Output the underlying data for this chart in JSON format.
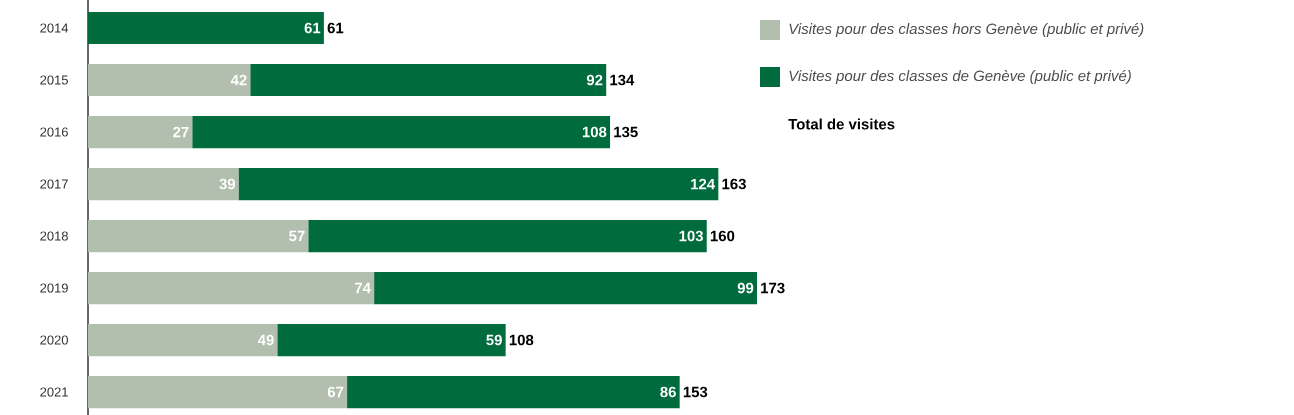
{
  "chart_data": {
    "type": "bar",
    "orientation": "horizontal",
    "stacked": true,
    "data_labels": true,
    "legend": "top right",
    "categories": [
      "2014",
      "2015",
      "2016",
      "2017",
      "2018",
      "2019",
      "2020",
      "2021"
    ],
    "series": [
      {
        "name": "Visites pour des classes hors Genève (public et privé)",
        "color": "#b3bfae",
        "values": [
          null,
          42,
          27,
          39,
          57,
          74,
          49,
          67
        ]
      },
      {
        "name": "Visites pour des classes de Genève (public et privé)",
        "color": "#006b3c",
        "values": [
          61,
          92,
          108,
          124,
          103,
          99,
          59,
          86
        ]
      }
    ],
    "totals": [
      "61",
      "134",
      "135",
      "163",
      "160",
      "173",
      "108",
      "153"
    ],
    "annotations": [
      "Total de visites"
    ]
  }
}
